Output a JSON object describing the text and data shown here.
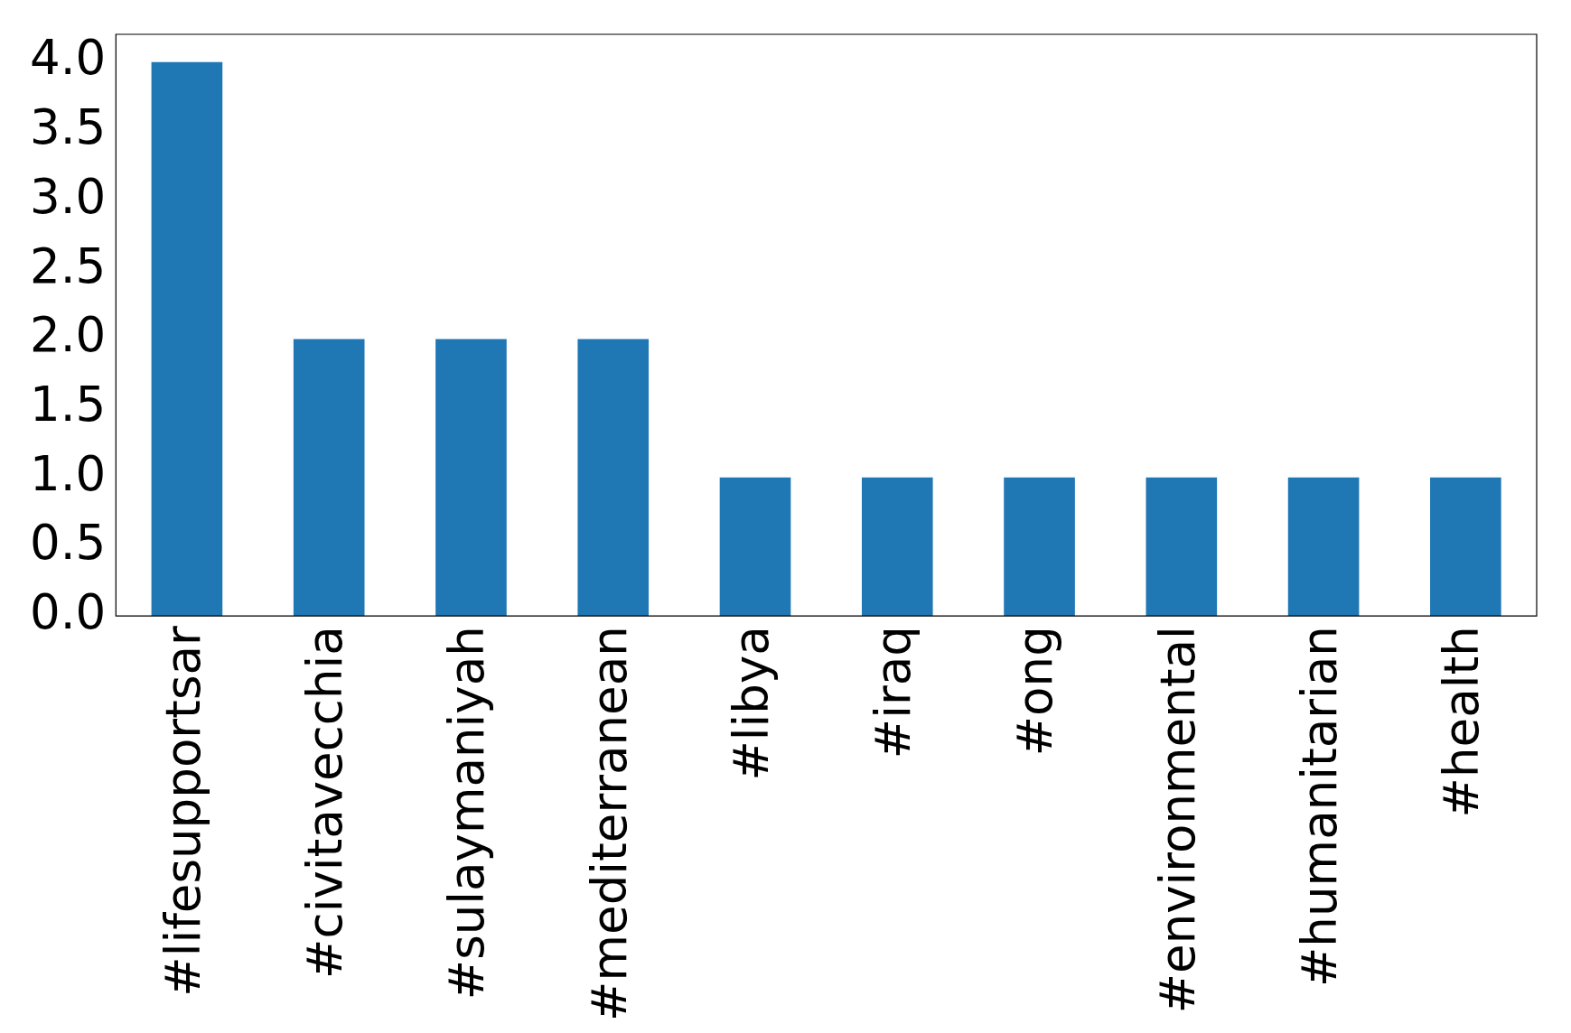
{
  "chart_data": {
    "type": "bar",
    "categories": [
      "#lifesupportsar",
      "#civitavecchia",
      "#sulaymaniyah",
      "#mediterranean",
      "#libya",
      "#iraq",
      "#ong",
      "#environmental",
      "#humanitarian",
      "#health"
    ],
    "values": [
      4,
      2,
      2,
      2,
      1,
      1,
      1,
      1,
      1,
      1
    ],
    "color": "#1f77b4",
    "ylim": [
      0,
      4.2
    ],
    "yticks": [
      {
        "value": 0,
        "label": "0.0"
      },
      {
        "value": 0.5,
        "label": "0.5"
      },
      {
        "value": 1,
        "label": "1.0"
      },
      {
        "value": 1.5,
        "label": "1.5"
      },
      {
        "value": 2,
        "label": "2.0"
      },
      {
        "value": 2.5,
        "label": "2.5"
      },
      {
        "value": 3,
        "label": "3.0"
      },
      {
        "value": 3.5,
        "label": "3.5"
      },
      {
        "value": 4,
        "label": "4.0"
      }
    ],
    "grid": false,
    "legend": false
  }
}
